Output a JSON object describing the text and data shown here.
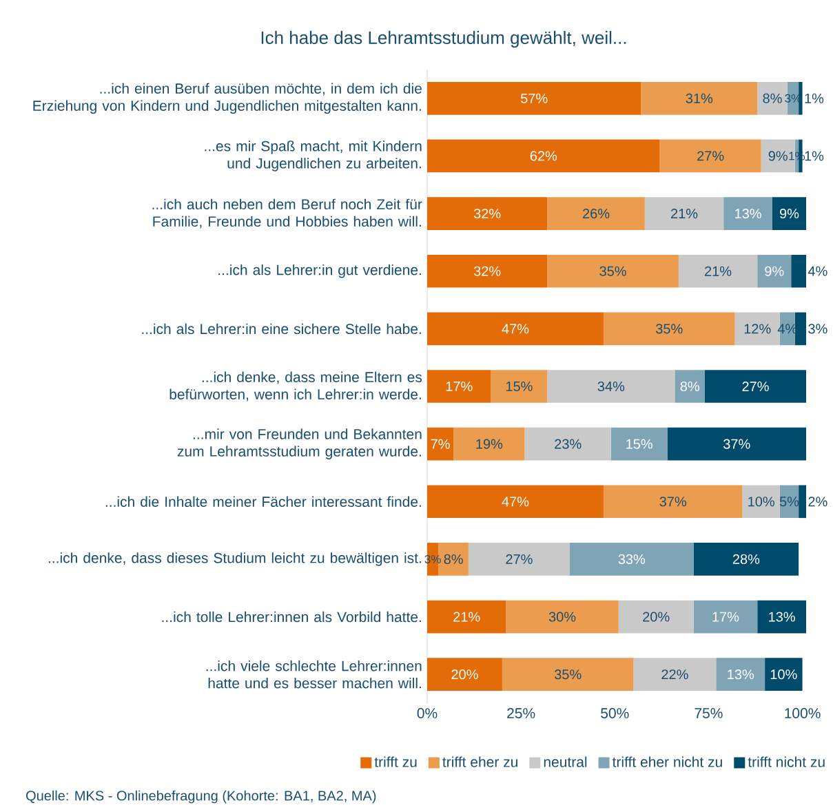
{
  "chart_data": {
    "type": "bar",
    "orientation": "horizontal",
    "stacked": true,
    "title": "Ich habe das Lehramtsstudium gewählt, weil...",
    "categories": [
      "...ich einen Beruf ausüben möchte, in dem ich die Erziehung von Kindern und Jugendlichen mitgestalten kann.",
      "...es mir Spaß macht, mit Kindern und Jugendlichen zu arbeiten.",
      "...ich auch neben dem Beruf noch Zeit für Familie, Freunde und Hobbies haben will.",
      "...ich als Lehrer:in gut verdiene.",
      "...ich als Lehrer:in eine sichere Stelle habe.",
      "...ich denke, dass meine Eltern es befürworten, wenn ich Lehrer:in werde.",
      "...mir von Freunden und Bekannten zum Lehramtsstudium geraten wurde.",
      "...ich die Inhalte meiner Fächer interessant finde.",
      "...ich denke, dass dieses Studium leicht zu bewältigen ist.",
      "...ich tolle Lehrer:innen als Vorbild hatte.",
      "...ich viele schlechte Lehrer:innen hatte und es besser machen will."
    ],
    "series": [
      {
        "name": "trifft zu",
        "color": "#e36c09",
        "values": [
          57,
          62,
          32,
          32,
          47,
          17,
          7,
          47,
          3,
          21,
          20
        ],
        "value_labels": [
          "57%",
          "62%",
          "32%",
          "32%",
          "47%",
          "17%",
          "7%",
          "47%",
          "3%",
          "21%",
          "20%"
        ]
      },
      {
        "name": "trifft eher zu",
        "color": "#ec9c4e",
        "values": [
          31,
          27,
          26,
          35,
          35,
          15,
          19,
          37,
          8,
          30,
          35
        ],
        "value_labels": [
          "31%",
          "27%",
          "26%",
          "35%",
          "35%",
          "15%",
          "19%",
          "37%",
          "8%",
          "30%",
          "35%"
        ]
      },
      {
        "name": "neutral",
        "color": "#c9c9c9",
        "values": [
          8,
          9,
          21,
          21,
          12,
          34,
          23,
          10,
          27,
          20,
          22
        ],
        "value_labels": [
          "8%",
          "9%",
          "21%",
          "21%",
          "12%",
          "34%",
          "23%",
          "10%",
          "27%",
          "20%",
          "22%"
        ]
      },
      {
        "name": "trifft eher nicht zu",
        "color": "#7fa4b6",
        "values": [
          3,
          1,
          13,
          9,
          4,
          8,
          15,
          5,
          33,
          17,
          13
        ],
        "value_labels": [
          "3%",
          "1%",
          "13%",
          "9%",
          "4%",
          "8%",
          "15%",
          "5%",
          "33%",
          "17%",
          "13%"
        ]
      },
      {
        "name": "trifft nicht zu",
        "color": "#004a6b",
        "values": [
          1,
          1,
          9,
          4,
          3,
          27,
          37,
          2,
          28,
          13,
          10
        ],
        "value_labels": [
          "1%",
          "1%",
          "9%",
          "4%",
          "3%",
          "27%",
          "37%",
          "2%",
          "28%",
          "13%",
          "10%"
        ]
      }
    ],
    "xlim": [
      0,
      101
    ],
    "xticks": [
      {
        "value": 0,
        "label": "0%"
      },
      {
        "value": 25,
        "label": "25%"
      },
      {
        "value": 50,
        "label": "50%"
      },
      {
        "value": 75,
        "label": "75%"
      },
      {
        "value": 100,
        "label": "100%"
      }
    ],
    "legend": "bottom",
    "grid": false,
    "annotations": [
      "Quelle: MKS - Onlinebefragung (Kohorte: BA1, BA2, MA)"
    ]
  }
}
